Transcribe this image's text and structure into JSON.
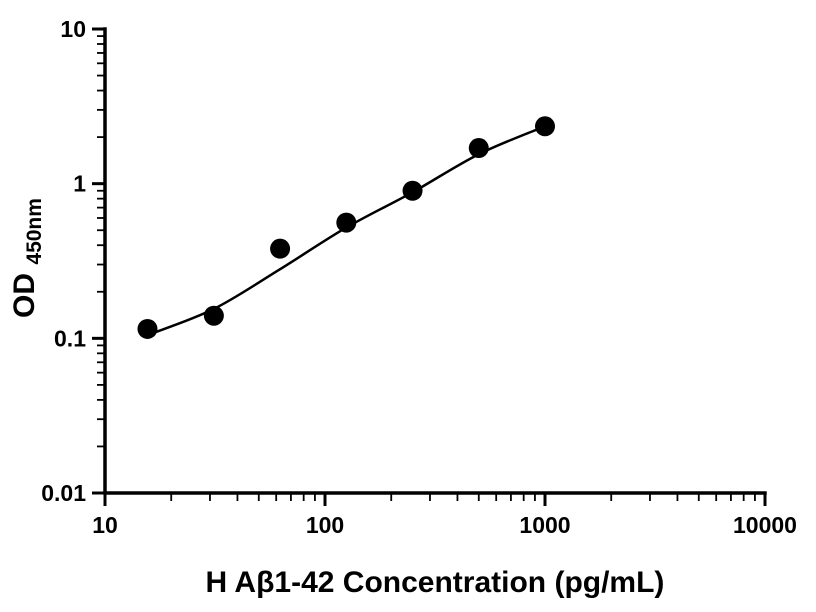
{
  "figure": {
    "description": "ELISA standard curve scatter plot with sigmoidal fit"
  },
  "chart_data": {
    "type": "scatter",
    "title": "",
    "xlabel": "H Aβ1-42 Concentration (pg/mL)",
    "ylabel_main": "OD",
    "ylabel_sub": "450nm",
    "x_scale": "log",
    "y_scale": "log",
    "xlim": [
      10,
      10000
    ],
    "ylim": [
      0.01,
      10
    ],
    "x_ticks": [
      10,
      100,
      1000,
      10000
    ],
    "x_tick_labels": [
      "10",
      "100",
      "1000",
      "10000"
    ],
    "y_ticks": [
      0.01,
      0.1,
      1,
      10
    ],
    "y_tick_labels": [
      "0.01",
      "0.1",
      "1",
      "10"
    ],
    "grid": "off",
    "legend": "none",
    "axis_color": "#000000",
    "marker_color": "#000000",
    "line_color": "#000000",
    "series": [
      {
        "name": "standard-points",
        "type": "scatter",
        "marker": "circle",
        "x": [
          15.6,
          31.25,
          62.5,
          125,
          250,
          500,
          1000
        ],
        "y": [
          0.115,
          0.14,
          0.38,
          0.56,
          0.9,
          1.7,
          2.35
        ]
      },
      {
        "name": "fit-curve",
        "type": "line",
        "x": [
          15.6,
          31.25,
          62.5,
          125,
          250,
          500,
          1000
        ],
        "y": [
          0.105,
          0.155,
          0.28,
          0.52,
          0.88,
          1.55,
          2.35
        ]
      }
    ]
  }
}
